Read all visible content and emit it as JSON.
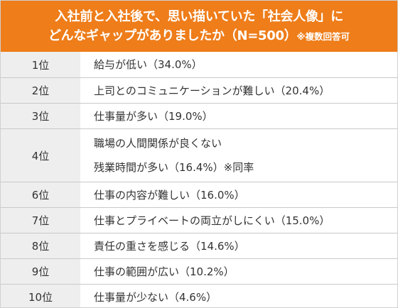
{
  "header": {
    "line1": "入社前と入社後で、思い描いていた「社会人像」に",
    "line2": "どんなギャップがありましたか（N=500）",
    "note": "※複数回答可"
  },
  "rows": [
    {
      "rank": "1位",
      "lines": [
        "給与が低い（34.0%）"
      ]
    },
    {
      "rank": "2位",
      "lines": [
        "上司とのコミュニケーションが難しい（20.4%）"
      ]
    },
    {
      "rank": "3位",
      "lines": [
        "仕事量が多い（19.0%）"
      ]
    },
    {
      "rank": "4位",
      "lines": [
        "職場の人間関係が良くない",
        "残業時間が多い（16.4%）※同率"
      ]
    },
    {
      "rank": "6位",
      "lines": [
        "仕事の内容が難しい（16.0%）"
      ]
    },
    {
      "rank": "7位",
      "lines": [
        "仕事とプライベートの両立がしにくい（15.0%）"
      ]
    },
    {
      "rank": "8位",
      "lines": [
        "責任の重さを感じる（14.6%）"
      ]
    },
    {
      "rank": "9位",
      "lines": [
        "仕事の範囲が広い（10.2%）"
      ]
    },
    {
      "rank": "10位",
      "lines": [
        "仕事量が少ない（4.6%）"
      ]
    }
  ]
}
